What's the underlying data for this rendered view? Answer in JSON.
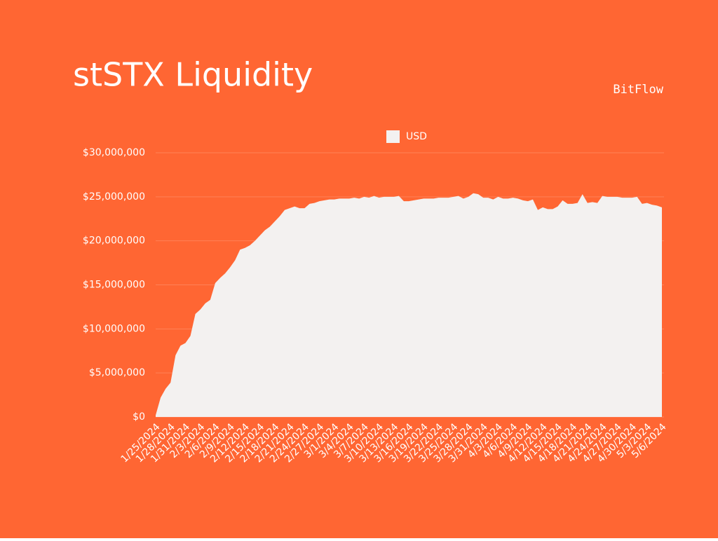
{
  "chart_data": {
    "type": "area",
    "title": "stSTX Liquidity",
    "subtitle": "BitFlow",
    "categories": [
      "1/25/2024",
      null,
      null,
      "1/28/2024",
      null,
      null,
      "1/31/2024",
      null,
      null,
      "2/3/2024",
      null,
      null,
      "2/6/2024",
      null,
      null,
      "2/9/2024",
      null,
      null,
      "2/12/2024",
      null,
      null,
      "2/15/2024",
      null,
      null,
      "2/18/2024",
      null,
      null,
      "2/21/2024",
      null,
      null,
      "2/24/2024",
      null,
      null,
      "2/27/2024",
      null,
      null,
      "3/1/2024",
      null,
      null,
      "3/4/2024",
      null,
      null,
      "3/7/2024",
      null,
      null,
      "3/10/2024",
      null,
      null,
      "3/13/2024",
      null,
      null,
      "3/16/2024",
      null,
      null,
      "3/19/2024",
      null,
      null,
      "3/22/2024",
      null,
      null,
      "3/25/2024",
      null,
      null,
      "3/28/2024",
      null,
      null,
      "3/31/2024",
      null,
      null,
      "4/3/2024",
      null,
      null,
      "4/6/2024",
      null,
      null,
      "4/9/2024",
      null,
      null,
      "4/12/2024",
      null,
      null,
      "4/15/2024",
      null,
      null,
      "4/18/2024",
      null,
      null,
      "4/21/2024",
      null,
      null,
      "4/24/2024",
      null,
      null,
      "4/27/2024",
      null,
      null,
      "4/30/2024",
      null,
      null,
      "5/3/2024",
      null,
      null,
      "5/6/2024"
    ],
    "series": [
      {
        "name": "USD",
        "color": "#f3f1f0",
        "values": [
          200000,
          2200000,
          3200000,
          3900000,
          7000000,
          8100000,
          8400000,
          9200000,
          11700000,
          12200000,
          12900000,
          13300000,
          15200000,
          15800000,
          16300000,
          17000000,
          17800000,
          19000000,
          19200000,
          19500000,
          20000000,
          20600000,
          21200000,
          21600000,
          22200000,
          22800000,
          23500000,
          23700000,
          23900000,
          23700000,
          23700000,
          24200000,
          24300000,
          24500000,
          24600000,
          24700000,
          24700000,
          24800000,
          24800000,
          24800000,
          24900000,
          24800000,
          25000000,
          24900000,
          25100000,
          24900000,
          25000000,
          25000000,
          25000000,
          25100000,
          24500000,
          24500000,
          24600000,
          24700000,
          24800000,
          24800000,
          24800000,
          24900000,
          24900000,
          24900000,
          25000000,
          25100000,
          24800000,
          25000000,
          25400000,
          25300000,
          24900000,
          24900000,
          24700000,
          25000000,
          24800000,
          24800000,
          24900000,
          24800000,
          24600000,
          24500000,
          24700000,
          23500000,
          23800000,
          23600000,
          23600000,
          23900000,
          24600000,
          24200000,
          24200000,
          24300000,
          25300000,
          24300000,
          24400000,
          24300000,
          25100000,
          25000000,
          25000000,
          25000000,
          24900000,
          24900000,
          24900000,
          25000000,
          24200000,
          24300000,
          24100000,
          24000000,
          23800000
        ]
      }
    ],
    "ylim": [
      0,
      30000000
    ],
    "yticks": [
      {
        "value": 0,
        "label": "$0"
      },
      {
        "value": 5000000,
        "label": "$5,000,000"
      },
      {
        "value": 10000000,
        "label": "$10,000,000"
      },
      {
        "value": 15000000,
        "label": "$15,000,000"
      },
      {
        "value": 20000000,
        "label": "$20,000,000"
      },
      {
        "value": 25000000,
        "label": "$25,000,000"
      },
      {
        "value": 30000000,
        "label": "$30,000,000"
      }
    ],
    "grid": true,
    "legend": "top",
    "background": "#ff6633"
  }
}
